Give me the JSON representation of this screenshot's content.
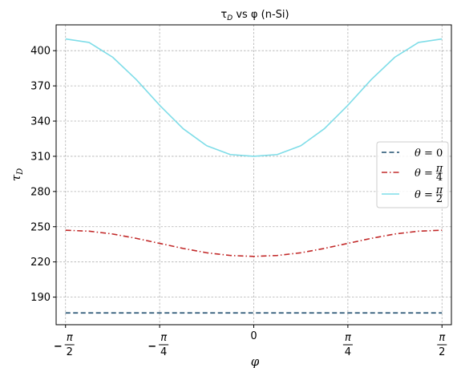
{
  "chart_data": {
    "type": "line",
    "title": "τ_D vs φ (n-Si)",
    "title_parts": {
      "pre": "τ",
      "sub": "D",
      "post": " vs φ (n-Si)"
    },
    "xlabel": "φ",
    "ylabel": "τ_D",
    "ylabel_parts": {
      "main": "τ",
      "sub": "D"
    },
    "xlim": [
      -1.6493,
      1.6493
    ],
    "ylim": [
      166.5,
      422
    ],
    "x_ticks": [
      {
        "value": -1.5708,
        "sign": "−",
        "num": "π",
        "den": "2"
      },
      {
        "value": -0.7854,
        "sign": "−",
        "num": "π",
        "den": "4"
      },
      {
        "value": 0,
        "sign": "",
        "num": "0",
        "den": ""
      },
      {
        "value": 0.7854,
        "sign": "",
        "num": "π",
        "den": "4"
      },
      {
        "value": 1.5708,
        "sign": "",
        "num": "π",
        "den": "2"
      }
    ],
    "y_ticks": [
      190,
      220,
      250,
      280,
      310,
      340,
      370,
      400
    ],
    "y_tick_labels": [
      "190",
      "220",
      "250",
      "280",
      "310",
      "340",
      "370",
      "400"
    ],
    "grid": true,
    "legend_position": "center-right",
    "x": [
      -1.5708,
      -1.3744,
      -1.1781,
      -0.9817,
      -0.7854,
      -0.589,
      -0.3927,
      -0.1963,
      0,
      0.1963,
      0.3927,
      0.589,
      0.7854,
      0.9817,
      1.1781,
      1.3744,
      1.5708
    ],
    "series": [
      {
        "name": "θ = 0",
        "legend_parts": {
          "var": "θ",
          "eq": " = ",
          "num": "0",
          "den": ""
        },
        "color": "#1f4e6e",
        "dash": "dashed",
        "values": [
          176.5,
          176.5,
          176.5,
          176.5,
          176.5,
          176.5,
          176.5,
          176.5,
          176.5,
          176.5,
          176.5,
          176.5,
          176.5,
          176.5,
          176.5,
          176.5,
          176.5
        ]
      },
      {
        "name": "θ = π/4",
        "legend_parts": {
          "var": "θ",
          "eq": " = ",
          "num": "π",
          "den": "4"
        },
        "color": "#c22a2a",
        "dash": "dashdot",
        "values": [
          247.0,
          246.2,
          243.8,
          240.1,
          235.8,
          231.5,
          227.8,
          225.5,
          224.7,
          225.5,
          227.8,
          231.5,
          235.8,
          240.1,
          243.8,
          246.2,
          247.0
        ]
      },
      {
        "name": "θ = π/2",
        "legend_parts": {
          "var": "θ",
          "eq": " = ",
          "num": "π",
          "den": "2"
        },
        "color": "#7fdde8",
        "dash": "solid",
        "values": [
          410.0,
          407.0,
          394.5,
          375.5,
          353.5,
          333.5,
          319.0,
          311.5,
          310.0,
          311.5,
          319.0,
          333.5,
          353.5,
          375.5,
          394.5,
          407.0,
          410.0
        ]
      }
    ]
  }
}
